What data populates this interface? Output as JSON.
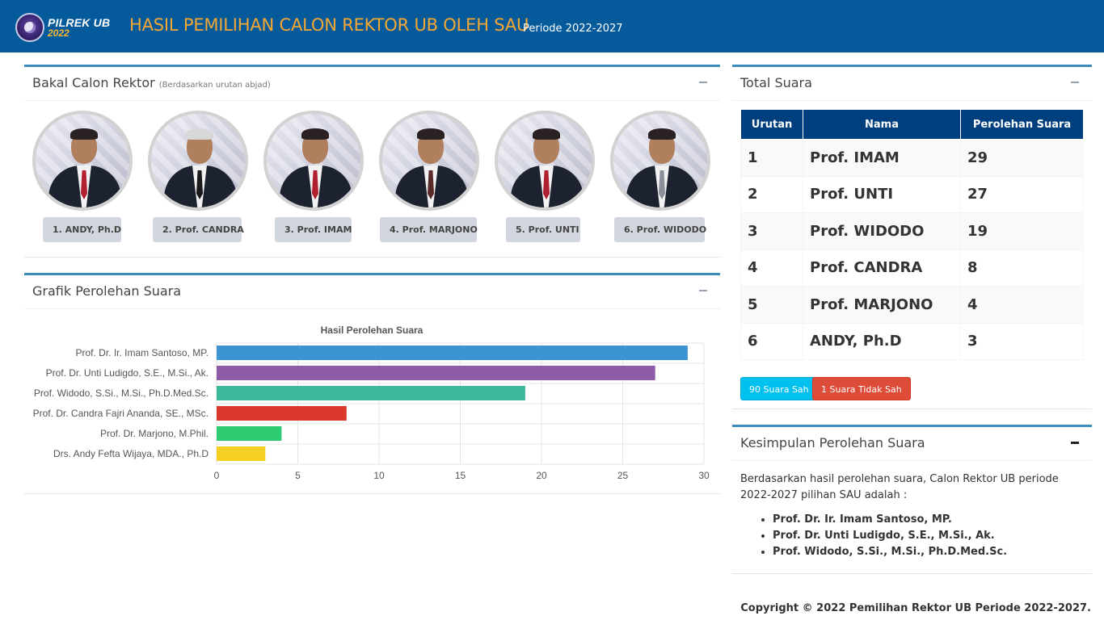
{
  "header": {
    "logo_title": "PILREK UB",
    "logo_year": "2022",
    "title": "HASIL PEMILIHAN CALON REKTOR UB OLEH SAU",
    "subtitle": "Periode 2022-2027"
  },
  "candidates_box": {
    "title": "Bakal Calon Rektor",
    "note": "(Berdasarkan urutan abjad)",
    "candidates": [
      {
        "label": "1. ANDY, Ph.D"
      },
      {
        "label": "2. Prof. CANDRA"
      },
      {
        "label": "3. Prof. IMAM"
      },
      {
        "label": "4. Prof. MARJONO"
      },
      {
        "label": "5. Prof. UNTI"
      },
      {
        "label": "6. Prof. WIDODO"
      }
    ]
  },
  "chart_box": {
    "title": "Grafik Perolehan Suara"
  },
  "chart_data": {
    "type": "bar",
    "orientation": "horizontal",
    "title": "Hasil Perolehan Suara",
    "categories": [
      "Prof. Dr. Ir. Imam Santoso, MP.",
      "Prof. Dr. Unti Ludigdo, S.E., M.Si., Ak.",
      "Prof. Widodo, S.Si., M.Si., Ph.D.Med.Sc.",
      "Prof. Dr. Candra Fajri Ananda, SE., MSc.",
      "Prof. Dr. Marjono, M.Phil.",
      "Drs. Andy Fefta Wijaya, MDA., Ph.D"
    ],
    "values": [
      29,
      27,
      19,
      8,
      4,
      3
    ],
    "colors": [
      "#3d94d2",
      "#8e5ba7",
      "#3cb89b",
      "#d9382a",
      "#2ecc71",
      "#f5d022"
    ],
    "xlim": [
      0,
      30
    ],
    "xticks": [
      "0",
      "5",
      "10",
      "15",
      "20",
      "25",
      "30"
    ],
    "grid": true,
    "legend": "none"
  },
  "total_box": {
    "title": "Total Suara",
    "columns": [
      "Urutan",
      "Nama",
      "Perolehan Suara"
    ],
    "rows": [
      {
        "rank": "1",
        "name": "Prof. IMAM",
        "votes": "29"
      },
      {
        "rank": "2",
        "name": "Prof. UNTI",
        "votes": "27"
      },
      {
        "rank": "3",
        "name": "Prof. WIDODO",
        "votes": "19"
      },
      {
        "rank": "4",
        "name": "Prof. CANDRA",
        "votes": "8"
      },
      {
        "rank": "5",
        "name": "Prof. MARJONO",
        "votes": "4"
      },
      {
        "rank": "6",
        "name": "ANDY, Ph.D",
        "votes": "3"
      }
    ],
    "valid_label": "90 Suara Sah",
    "invalid_label": "1 Suara Tidak Sah"
  },
  "conclusion_box": {
    "title": "Kesimpulan Perolehan Suara",
    "text": "Berdasarkan hasil perolehan suara, Calon Rektor UB periode 2022-2027 pilihan SAU adalah :",
    "winners": [
      "Prof. Dr. Ir. Imam Santoso, MP.",
      "Prof. Dr. Unti Ludigdo, S.E., M.Si., Ak.",
      "Prof. Widodo, S.Si., M.Si., Ph.D.Med.Sc."
    ]
  },
  "footer": {
    "copyright": "Copyright © 2022 Pemilihan Rektor UB Periode 2022-2027."
  },
  "colors": {
    "header_bg": "#055a9c",
    "header_title": "#f4a732",
    "box_border": "#3c8dbc",
    "table_header": "#003f7d"
  }
}
